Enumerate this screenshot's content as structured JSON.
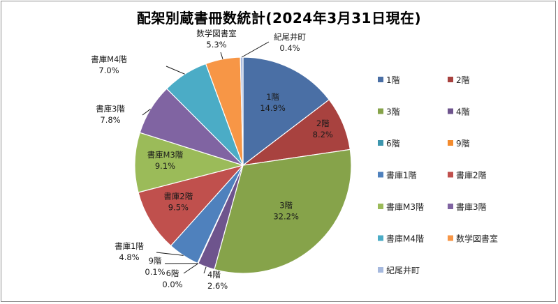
{
  "chart_data": {
    "type": "pie",
    "title": "配架別蔵書冊数統計(2024年3月31日現在)",
    "slices": [
      {
        "name": "1階",
        "percent": "14.9%",
        "value": 14.9,
        "color": "#4a6fa5"
      },
      {
        "name": "2階",
        "percent": "8.2%",
        "value": 8.2,
        "color": "#a8423f"
      },
      {
        "name": "3階",
        "percent": "32.2%",
        "value": 32.2,
        "color": "#86a34a"
      },
      {
        "name": "4階",
        "percent": "2.6%",
        "value": 2.6,
        "color": "#6e548d"
      },
      {
        "name": "6階",
        "percent": "0.0%",
        "value": 0.0,
        "color": "#3d96ae"
      },
      {
        "name": "9階",
        "percent": "0.1%",
        "value": 0.1,
        "color": "#f38b2e"
      },
      {
        "name": "書庫1階",
        "percent": "4.8%",
        "value": 4.8,
        "color": "#4f81bd"
      },
      {
        "name": "書庫2階",
        "percent": "9.5%",
        "value": 9.5,
        "color": "#c0504d"
      },
      {
        "name": "書庫M3階",
        "percent": "9.1%",
        "value": 9.1,
        "color": "#9bbb59"
      },
      {
        "name": "書庫3階",
        "percent": "7.8%",
        "value": 7.8,
        "color": "#8064a2"
      },
      {
        "name": "書庫M4階",
        "percent": "7.0%",
        "value": 7.0,
        "color": "#4bacc6"
      },
      {
        "name": "数学図書室",
        "percent": "5.3%",
        "value": 5.3,
        "color": "#f79646"
      },
      {
        "name": "紀尾井町",
        "percent": "0.4%",
        "value": 0.4,
        "color": "#a6b9de"
      }
    ],
    "legend_position": "right"
  }
}
